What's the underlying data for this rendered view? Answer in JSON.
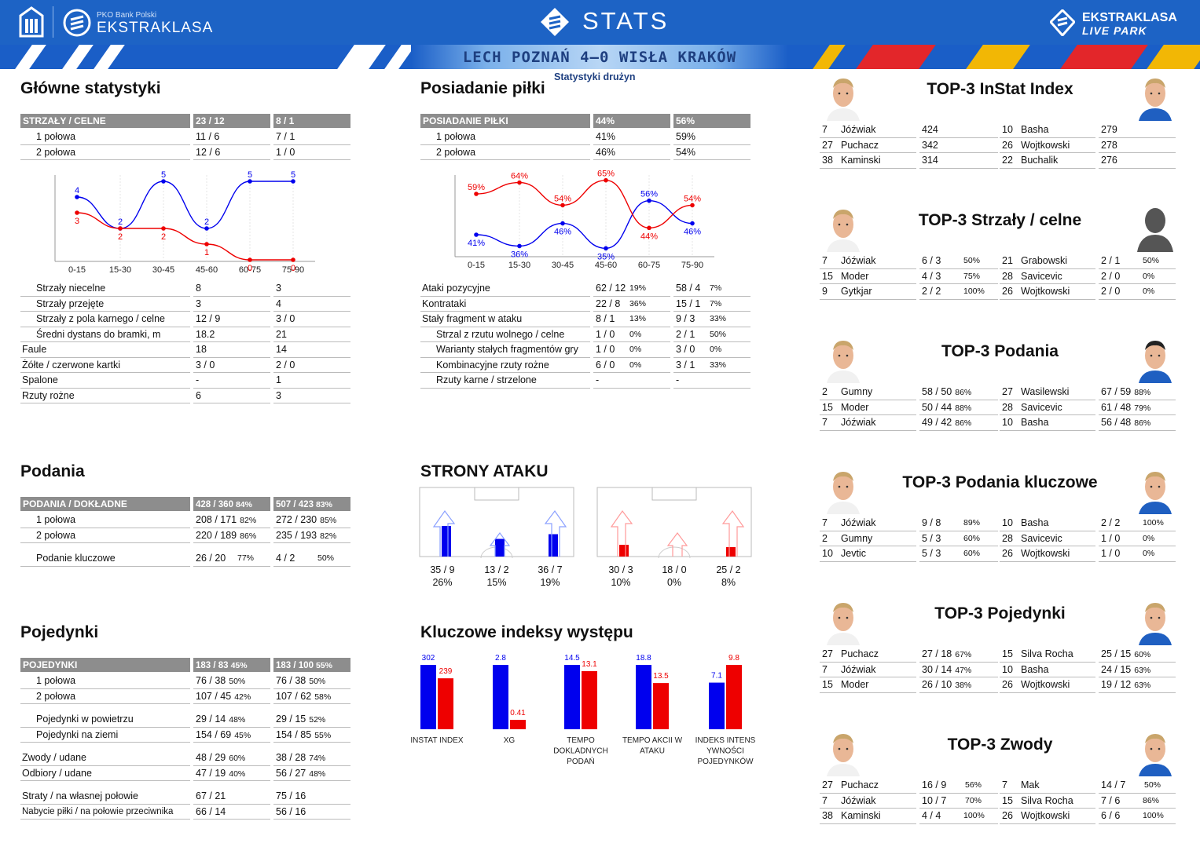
{
  "header": {
    "brand_small": "PKO Bank Polski",
    "brand": "EKSTRAKLASA",
    "stats": "STATS",
    "right1": "EKSTRAKLASA",
    "right2": "LIVE PARK",
    "match": "LECH POZNAŃ 4–0 WISŁA KRAKÓW",
    "subtitle": "Statystyki drużyn"
  },
  "colors": {
    "home": "#0000ee",
    "away": "#ee0000",
    "header_bg": "#1d63c5",
    "table_header": "#8d8d8d"
  },
  "main": {
    "title": "Główne statystyki",
    "head": [
      "STRZAŁY / CELNE",
      "23 / 12",
      "8 / 1"
    ],
    "halves": [
      [
        "1 połowa",
        "11 / 6",
        "7 / 1"
      ],
      [
        "2 połowa",
        "12 / 6",
        "1 / 0"
      ]
    ],
    "rows": [
      [
        "Strzały niecelne",
        "8",
        "3",
        true
      ],
      [
        "Strzały przejęte",
        "3",
        "4",
        true
      ],
      [
        "Strzały z pola karnego / celne",
        "12 / 9",
        "3 / 0",
        true
      ],
      [
        "Średni dystans do bramki, m",
        "18.2",
        "21",
        true
      ],
      [
        "Faule",
        "18",
        "14",
        false
      ],
      [
        "Żółte / czerwone kartki",
        "3 / 0",
        "2 / 0",
        false
      ],
      [
        "Spalone",
        "-",
        "1",
        false
      ],
      [
        "Rzuty rożne",
        "6",
        "3",
        false
      ]
    ]
  },
  "possession": {
    "title": "Posiadanie piłki",
    "head": [
      "POSIADANIE PIŁKI",
      "44%",
      "56%"
    ],
    "halves": [
      [
        "1 połowa",
        "41%",
        "59%"
      ],
      [
        "2 połowa",
        "46%",
        "54%"
      ]
    ],
    "rows": [
      [
        "Ataki pozycyjne",
        "62 / 12",
        "19%",
        "58 / 4",
        "7%",
        false
      ],
      [
        "Kontrataki",
        "22 / 8",
        "36%",
        "15 / 1",
        "7%",
        false
      ],
      [
        "Stały fragment w ataku",
        "8 / 1",
        "13%",
        "9 / 3",
        "33%",
        false
      ],
      [
        "Strzal z rzutu wolnego / celne",
        "1 / 0",
        "0%",
        "2 / 1",
        "50%",
        true
      ],
      [
        "Warianty stałych fragmentów gry",
        "1 / 0",
        "0%",
        "3 / 0",
        "0%",
        true
      ],
      [
        "Kombinacyjne rzuty rożne",
        "6 / 0",
        "0%",
        "3 / 1",
        "33%",
        true
      ],
      [
        "Rzuty karne / strzelone",
        "-",
        "",
        "-",
        "",
        true
      ]
    ]
  },
  "passes": {
    "title": "Podania",
    "head": [
      "PODANIA / DOKŁADNE",
      "428 / 360",
      "84%",
      "507 / 423",
      "83%"
    ],
    "rows": [
      [
        "1 połowa",
        "208 / 171",
        "82%",
        "272 / 230",
        "85%"
      ],
      [
        "2 połowa",
        "220 / 189",
        "86%",
        "235 / 193",
        "82%"
      ],
      [
        "Podanie kluczowe",
        "26 / 20",
        "77%",
        "4 / 2",
        "50%"
      ]
    ]
  },
  "duels": {
    "title": "Pojedynki",
    "head": [
      "POJEDYNKI",
      "183 / 83",
      "45%",
      "183 / 100",
      "55%"
    ],
    "rows": [
      [
        "1 połowa",
        "76 / 38",
        "50%",
        "76 / 38",
        "50%",
        true
      ],
      [
        "2 połowa",
        "107 / 45",
        "42%",
        "107 / 62",
        "58%",
        true
      ],
      [
        "Pojedynki w powietrzu",
        "29 / 14",
        "48%",
        "29 / 15",
        "52%",
        true
      ],
      [
        "Pojedynki na ziemi",
        "154 / 69",
        "45%",
        "154 / 85",
        "55%",
        true
      ],
      [
        "Zwody / udane",
        "48 / 29",
        "60%",
        "38 / 28",
        "74%",
        false
      ],
      [
        "Odbiory / udane",
        "47 / 19",
        "40%",
        "56 / 27",
        "48%",
        false
      ],
      [
        "Straty / na własnej połowie",
        "67 / 21",
        "",
        "75 / 16",
        "",
        false
      ],
      [
        "Nabycie piłki / na połowie przeciwnika",
        "66 / 14",
        "",
        "56 / 16",
        "",
        false
      ]
    ]
  },
  "attack": {
    "title": "STRONY ATAKU",
    "home": [
      [
        "35 / 9",
        "26%"
      ],
      [
        "13 / 2",
        "15%"
      ],
      [
        "36 / 7",
        "19%"
      ]
    ],
    "away": [
      [
        "30 / 3",
        "10%"
      ],
      [
        "18 / 0",
        "0%"
      ],
      [
        "25 / 2",
        "8%"
      ]
    ]
  },
  "kpi": {
    "title": "Kluczowe indeksy występu"
  },
  "top": [
    {
      "title": "TOP-3 InStat Index",
      "home": [
        [
          "7",
          "Jóźwiak",
          "424",
          ""
        ],
        [
          "27",
          "Puchacz",
          "342",
          ""
        ],
        [
          "38",
          "Kaminski",
          "314",
          ""
        ]
      ],
      "away": [
        [
          "10",
          "Basha",
          "279",
          ""
        ],
        [
          "26",
          "Wojtkowski",
          "278",
          ""
        ],
        [
          "22",
          "Buchalik",
          "276",
          ""
        ]
      ]
    },
    {
      "title": "TOP-3 Strzały / celne",
      "home": [
        [
          "7",
          "Jóźwiak",
          "6 / 3",
          "50%"
        ],
        [
          "15",
          "Moder",
          "4 / 3",
          "75%"
        ],
        [
          "9",
          "Gytkjar",
          "2 / 2",
          "100%"
        ]
      ],
      "away": [
        [
          "21",
          "Grabowski",
          "2 / 1",
          "50%"
        ],
        [
          "28",
          "Savicevic",
          "2 / 0",
          "0%"
        ],
        [
          "26",
          "Wojtkowski",
          "2 / 0",
          "0%"
        ]
      ]
    },
    {
      "title": "TOP-3 Podania",
      "home": [
        [
          "2",
          "Gumny",
          "58 / 50",
          "86%"
        ],
        [
          "15",
          "Moder",
          "50 / 44",
          "88%"
        ],
        [
          "7",
          "Jóźwiak",
          "49 / 42",
          "86%"
        ]
      ],
      "away": [
        [
          "27",
          "Wasilewski",
          "67 / 59",
          "88%"
        ],
        [
          "28",
          "Savicevic",
          "61 / 48",
          "79%"
        ],
        [
          "10",
          "Basha",
          "56 / 48",
          "86%"
        ]
      ]
    },
    {
      "title": "TOP-3 Podania kluczowe",
      "home": [
        [
          "7",
          "Jóźwiak",
          "9 / 8",
          "89%"
        ],
        [
          "2",
          "Gumny",
          "5 / 3",
          "60%"
        ],
        [
          "10",
          "Jevtic",
          "5 / 3",
          "60%"
        ]
      ],
      "away": [
        [
          "10",
          "Basha",
          "2 / 2",
          "100%"
        ],
        [
          "28",
          "Savicevic",
          "1 / 0",
          "0%"
        ],
        [
          "26",
          "Wojtkowski",
          "1 / 0",
          "0%"
        ]
      ]
    },
    {
      "title": "TOP-3 Pojedynki",
      "home": [
        [
          "27",
          "Puchacz",
          "27 / 18",
          "67%"
        ],
        [
          "7",
          "Jóźwiak",
          "30 / 14",
          "47%"
        ],
        [
          "15",
          "Moder",
          "26 / 10",
          "38%"
        ]
      ],
      "away": [
        [
          "15",
          "Silva Rocha",
          "25 / 15",
          "60%"
        ],
        [
          "10",
          "Basha",
          "24 / 15",
          "63%"
        ],
        [
          "26",
          "Wojtkowski",
          "19 / 12",
          "63%"
        ]
      ]
    },
    {
      "title": "TOP-3 Zwody",
      "home": [
        [
          "27",
          "Puchacz",
          "16 / 9",
          "56%"
        ],
        [
          "7",
          "Jóźwiak",
          "10 / 7",
          "70%"
        ],
        [
          "38",
          "Kaminski",
          "4 / 4",
          "100%"
        ]
      ],
      "away": [
        [
          "7",
          "Mak",
          "14 / 7",
          "50%"
        ],
        [
          "15",
          "Silva Rocha",
          "7 / 6",
          "86%"
        ],
        [
          "26",
          "Wojtkowski",
          "6 / 6",
          "100%"
        ]
      ]
    }
  ],
  "chart_data": [
    {
      "type": "line",
      "name": "shots-by-period",
      "categories": [
        "0-15",
        "15-30",
        "30-45",
        "45-60",
        "60-75",
        "75-90"
      ],
      "series": [
        {
          "values": [
            4,
            2,
            5,
            2,
            5,
            5
          ]
        },
        {
          "values": [
            3,
            2,
            2,
            1,
            0,
            0
          ]
        }
      ],
      "ylim": [
        0,
        5
      ]
    },
    {
      "type": "line",
      "name": "possession-by-period",
      "categories": [
        "0-15",
        "15-30",
        "30-45",
        "45-60",
        "60-75",
        "75-90"
      ],
      "series": [
        {
          "values": [
            41,
            36,
            46,
            35,
            56,
            46
          ],
          "labels": [
            "41%",
            "36%",
            "46%",
            "35%",
            "56%",
            "46%"
          ]
        },
        {
          "values": [
            59,
            64,
            54,
            65,
            44,
            54
          ],
          "labels": [
            "59%",
            "64%",
            "54%",
            "65%",
            "44%",
            "54%"
          ]
        }
      ],
      "ylim": [
        30,
        70
      ]
    },
    {
      "type": "bar",
      "name": "attack-sides",
      "categories": [
        "left",
        "center",
        "right"
      ],
      "series": [
        {
          "values": [
            26,
            15,
            19
          ]
        },
        {
          "values": [
            10,
            0,
            8
          ]
        }
      ],
      "ylim": [
        0,
        40
      ]
    },
    {
      "type": "bar",
      "name": "key-performance-indices",
      "categories": [
        "INSTAT INDEX",
        "XG",
        "TEMPO DOKLADNYCH PODAŃ",
        "TEMPO AKCII W ATAKU",
        "INDEKS INTENS YWNOŚCI POJEDYNKÓW"
      ],
      "series": [
        {
          "values": [
            302,
            2.8,
            14.5,
            18.8,
            7.1
          ],
          "labels": [
            "302",
            "2.8",
            "14.5",
            "18.8",
            "7.1"
          ]
        },
        {
          "values": [
            239,
            0.41,
            13.1,
            13.5,
            9.8
          ],
          "labels": [
            "239",
            "0.41",
            "13.1",
            "13.5",
            "9.8"
          ]
        }
      ]
    }
  ]
}
